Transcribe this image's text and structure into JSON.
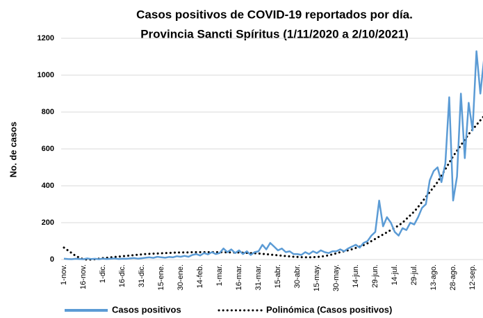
{
  "chart_data": {
    "type": "line",
    "title": "Casos positivos de COVID-19 reportados por día.",
    "subtitle": "Provincia Sancti Spíritus (1/11/2020 a 2/10/2021)",
    "y_label": "No. de casos",
    "categories": [
      "1-nov.",
      null,
      null,
      null,
      null,
      "16-nov.",
      null,
      null,
      null,
      null,
      "1-dic.",
      null,
      null,
      null,
      null,
      "16-dic.",
      null,
      null,
      null,
      null,
      "31-dic.",
      null,
      null,
      null,
      null,
      "15-ene.",
      null,
      null,
      null,
      null,
      "30-ene.",
      null,
      null,
      null,
      null,
      "14-feb.",
      null,
      null,
      null,
      null,
      "1-mar.",
      null,
      null,
      null,
      null,
      "16-mar.",
      null,
      null,
      null,
      null,
      "31-mar.",
      null,
      null,
      null,
      null,
      "15-abr.",
      null,
      null,
      null,
      null,
      "30-abr.",
      null,
      null,
      null,
      null,
      "15-may.",
      null,
      null,
      null,
      null,
      "30-may.",
      null,
      null,
      null,
      null,
      "14-jun.",
      null,
      null,
      null,
      null,
      "29-jun.",
      null,
      null,
      null,
      null,
      "14-jul.",
      null,
      null,
      null,
      null,
      "29-jul.",
      null,
      null,
      null,
      null,
      "13-ago.",
      null,
      null,
      null,
      null,
      "28-ago.",
      null,
      null,
      null,
      null,
      "12-sep.",
      null,
      null,
      null
    ],
    "series": [
      {
        "name": "Casos positivos",
        "color": "#5b9bd5",
        "style": "solid",
        "values": [
          5,
          3,
          2,
          4,
          3,
          2,
          6,
          3,
          4,
          2,
          5,
          3,
          4,
          6,
          3,
          5,
          4,
          6,
          8,
          5,
          7,
          10,
          12,
          9,
          15,
          12,
          10,
          14,
          12,
          18,
          15,
          20,
          15,
          25,
          30,
          22,
          35,
          28,
          40,
          30,
          35,
          60,
          40,
          55,
          35,
          50,
          30,
          45,
          25,
          40,
          45,
          80,
          55,
          90,
          70,
          50,
          60,
          40,
          45,
          30,
          30,
          25,
          40,
          30,
          45,
          35,
          50,
          40,
          35,
          45,
          45,
          55,
          45,
          60,
          70,
          80,
          65,
          90,
          100,
          130,
          150,
          320,
          180,
          230,
          200,
          150,
          130,
          170,
          160,
          200,
          190,
          230,
          280,
          300,
          430,
          480,
          500,
          420,
          520,
          880,
          320,
          450,
          900,
          550,
          850,
          700,
          1130,
          900,
          1100
        ]
      },
      {
        "name": "Polinómica (Casos positivos)",
        "color": "#000000",
        "style": "dotted",
        "values": [
          65,
          50,
          35,
          20,
          10,
          2,
          0,
          0,
          2,
          5,
          8,
          10,
          12,
          14,
          16,
          18,
          20,
          22,
          24,
          26,
          28,
          30,
          31,
          32,
          33,
          34,
          35,
          36,
          37,
          38,
          38,
          39,
          39,
          40,
          40,
          40,
          40,
          40,
          40,
          40,
          40,
          40,
          39,
          39,
          38,
          38,
          37,
          36,
          35,
          34,
          33,
          31,
          29,
          27,
          25,
          23,
          21,
          19,
          17,
          15,
          14,
          13,
          12,
          12,
          13,
          14,
          16,
          19,
          23,
          28,
          34,
          40,
          45,
          50,
          56,
          63,
          70,
          78,
          88,
          100,
          112,
          124,
          136,
          148,
          160,
          172,
          185,
          200,
          220,
          240,
          260,
          285,
          312,
          339,
          366,
          393,
          420,
          455,
          490,
          525,
          560,
          590,
          620,
          650,
          680,
          705,
          730,
          755,
          780
        ]
      }
    ],
    "ylim": [
      0,
      1200
    ],
    "yticks": [
      0,
      200,
      400,
      600,
      800,
      1000,
      1200
    ],
    "grid": true,
    "legend": "bottom"
  }
}
